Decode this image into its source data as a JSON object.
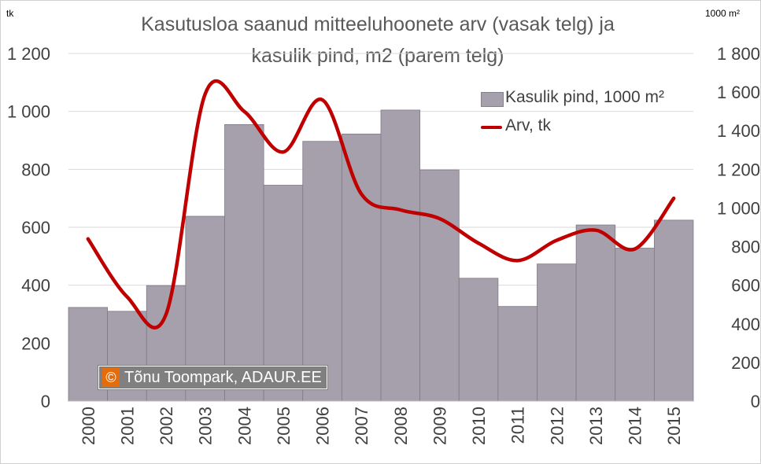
{
  "chart_data": {
    "type": "bar",
    "title_line1": "Kasutusloa saanud mitteeluhoonete arv (vasak telg) ja",
    "title_line2": "kasulik pind, m2 (parem telg)",
    "left_unit": "tk",
    "right_unit": "1000 m²",
    "categories": [
      "2000",
      "2001",
      "2002",
      "2003",
      "2004",
      "2005",
      "2006",
      "2007",
      "2008",
      "2009",
      "2010",
      "2011",
      "2012",
      "2013",
      "2014",
      "2015"
    ],
    "left_ticks": [
      "0",
      "200",
      "400",
      "600",
      "800",
      "1 000",
      "1 200"
    ],
    "right_ticks": [
      "0",
      "200",
      "400",
      "600",
      "800",
      "1 000",
      "1 200",
      "1 400",
      "1 600",
      "1 800"
    ],
    "left_range": [
      0,
      1200
    ],
    "right_range": [
      0,
      1800
    ],
    "series": [
      {
        "name": "Kasulik pind, 1000 m²",
        "kind": "bar",
        "axis": "right",
        "color": "#a6a0ac",
        "values": [
          485,
          465,
          598,
          957,
          1432,
          1118,
          1345,
          1383,
          1507,
          1197,
          636,
          490,
          710,
          912,
          792,
          937
        ]
      },
      {
        "name": "Arv, tk",
        "kind": "line",
        "axis": "left",
        "color": "#c00000",
        "values": [
          560,
          360,
          300,
          1060,
          1000,
          860,
          1040,
          715,
          660,
          630,
          545,
          485,
          555,
          590,
          525,
          700
        ]
      }
    ],
    "grid": true,
    "legend": "top-right"
  },
  "watermark": {
    "symbol": "©",
    "text": "Tõnu Toompark, ADAUR.EE"
  }
}
